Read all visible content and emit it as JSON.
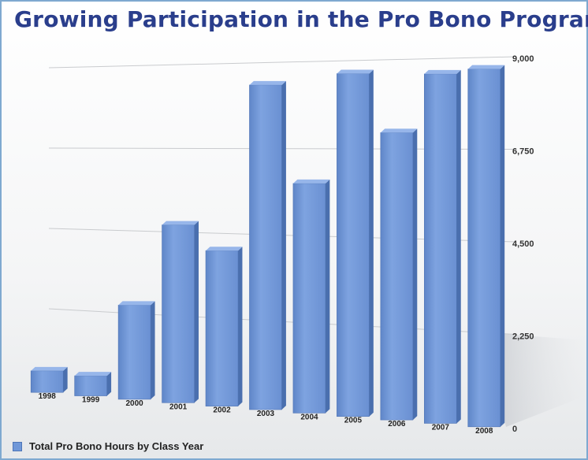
{
  "title": "Growing Participation in the Pro Bono Program",
  "colors": {
    "bar_front": "#6f97d8",
    "bar_side": "#4a6fae",
    "bar_top": "#8fb0e6",
    "title": "#2a3e8c"
  },
  "chart_data": {
    "type": "bar",
    "title": "Growing Participation in the Pro Bono Program",
    "categories": [
      "1998",
      "1999",
      "2000",
      "2001",
      "2002",
      "2003",
      "2004",
      "2005",
      "2006",
      "2007",
      "2008"
    ],
    "series": [
      {
        "name": "Total Pro Bono Hours by Class Year",
        "values": [
          600,
          550,
          2550,
          4750,
          4100,
          8450,
          5900,
          8700,
          7200,
          8650,
          8750
        ]
      }
    ],
    "y_ticks": [
      "9,000",
      "6,750",
      "4,500",
      "2,250",
      "0"
    ],
    "ylim": [
      0,
      9000
    ],
    "grid": true,
    "legend_position": "bottom-left"
  }
}
